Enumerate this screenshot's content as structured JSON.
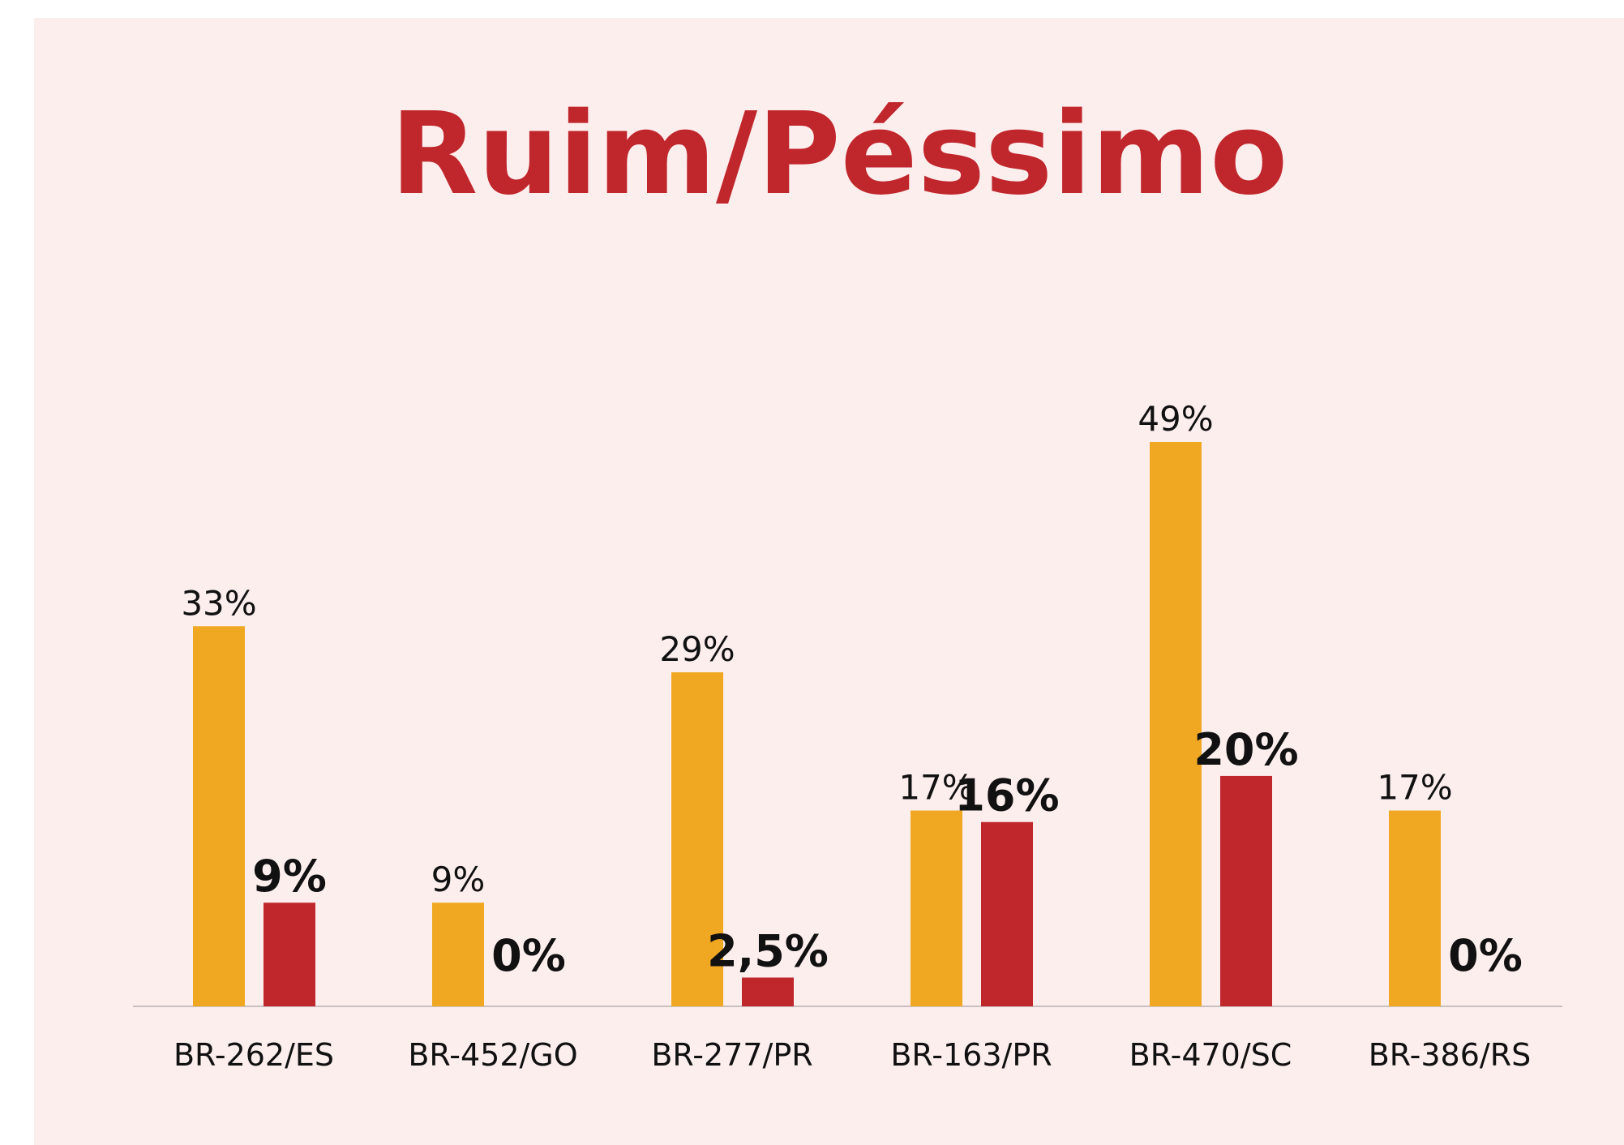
{
  "chart_data": {
    "type": "bar",
    "title": "Ruim/Péssimo",
    "categories": [
      "BR-262/ES",
      "BR-452/GO",
      "BR-277/PR",
      "BR-163/PR",
      "BR-470/SC",
      "BR-386/RS"
    ],
    "series": [
      {
        "color": "#f0a823",
        "values": [
          33,
          9,
          29,
          17,
          49,
          17
        ],
        "value_labels": [
          "33%",
          "9%",
          "29%",
          "17%",
          "49%",
          "17%"
        ]
      },
      {
        "color": "#c0272d",
        "values": [
          9,
          0,
          2.5,
          16,
          20,
          0
        ],
        "value_labels": [
          "9%",
          "0%",
          "2,5%",
          "16%",
          "20%",
          "0%"
        ]
      }
    ]
  }
}
